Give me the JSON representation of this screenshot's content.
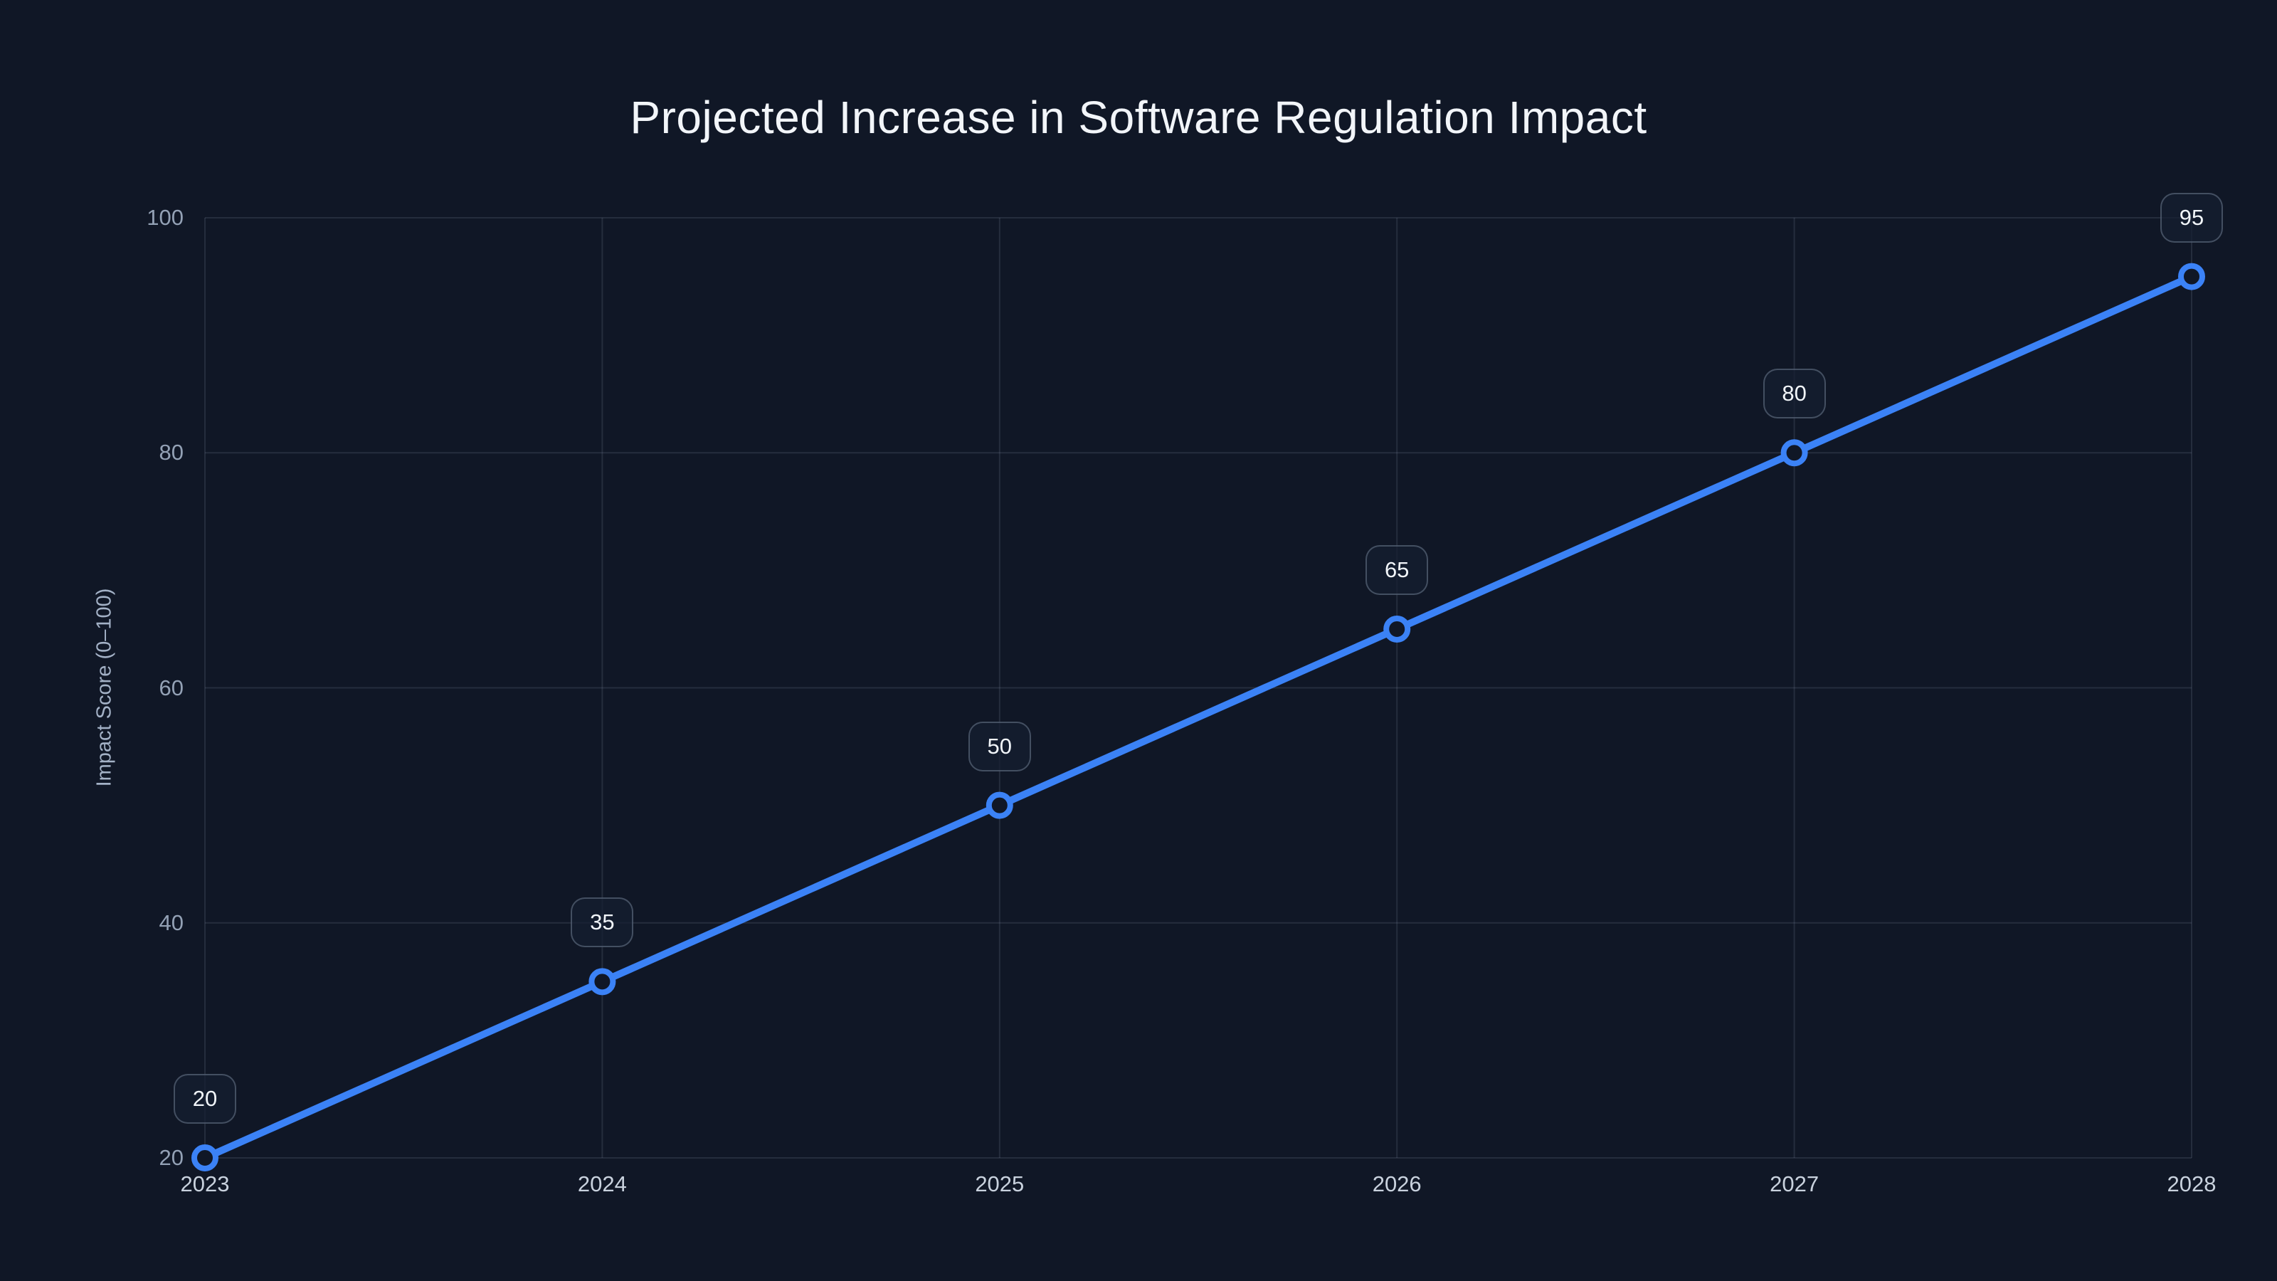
{
  "page": {
    "background_color": "#101726"
  },
  "chart_data": {
    "type": "line",
    "title": "Projected Increase in Software Regulation Impact",
    "xlabel": "",
    "ylabel": "Impact Score (0–100)",
    "categories": [
      "2023",
      "2024",
      "2025",
      "2026",
      "2027",
      "2028"
    ],
    "series": [
      {
        "name": "Impact Score",
        "values": [
          20,
          35,
          50,
          65,
          80,
          95
        ]
      }
    ],
    "point_labels": [
      "20",
      "35",
      "50",
      "65",
      "80",
      "95"
    ],
    "y_ticks": [
      20,
      40,
      60,
      80,
      100
    ],
    "ylim": [
      20,
      100
    ],
    "grid": true,
    "legend": "none",
    "colors": {
      "line": "#3b82f6",
      "marker_ring": "#3b82f6",
      "marker_fill": "#101726",
      "gridline": "rgba(148,163,184,0.16)",
      "title_text": "#f2f5f9",
      "x_tick_text": "#c9d2de",
      "y_tick_text": "#93a1b5",
      "axis_title_text": "#a3b1c6",
      "label_box_border": "rgba(148,163,184,0.38)",
      "label_box_bg": "rgba(21,30,48,0.72)",
      "label_text": "#f1f5f9"
    }
  }
}
